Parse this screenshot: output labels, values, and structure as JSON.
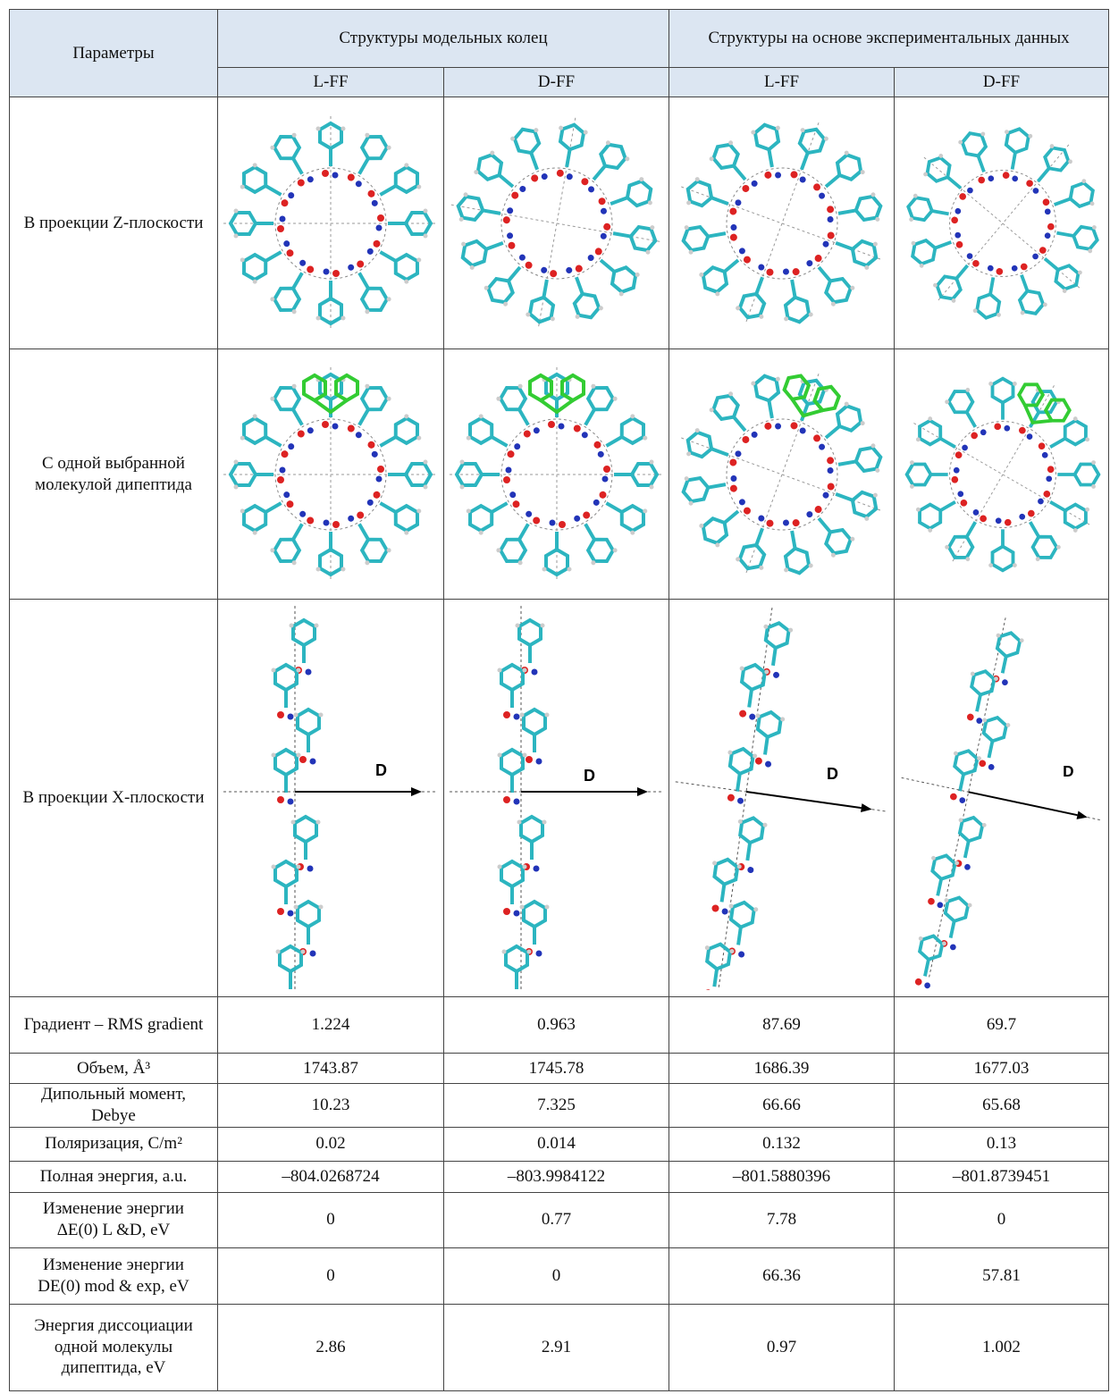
{
  "header": {
    "parameters": "Параметры",
    "groups": [
      "Структуры модельных колец",
      "Структуры на основе экспериментальных данных"
    ],
    "subheaders": [
      "L-FF",
      "D-FF",
      "L-FF",
      "D-FF"
    ]
  },
  "image_rows": [
    {
      "label": "В проекции Z-плоскости"
    },
    {
      "label": "С одной выбранной молекулой дипептида"
    },
    {
      "label": "В проекции X-плоскости",
      "arrow_labels": [
        "D",
        "D",
        "D",
        "D"
      ]
    }
  ],
  "rows": [
    {
      "label": "Градиент – RMS gradient",
      "values": [
        "1.224",
        "0.963",
        "87.69",
        "69.7"
      ]
    },
    {
      "label": "Объем, Å³",
      "values": [
        "1743.87",
        "1745.78",
        "1686.39",
        "1677.03"
      ]
    },
    {
      "label": "Дипольный момент, Debye",
      "values": [
        "10.23",
        "7.325",
        "66.66",
        "65.68"
      ]
    },
    {
      "label": "Поляризация, C/m²",
      "values": [
        "0.02",
        "0.014",
        "0.132",
        "0.13"
      ]
    },
    {
      "label": "Полная энергия, a.u.",
      "values": [
        "–804.0268724",
        "–803.9984122",
        "–801.5880396",
        "–801.8739451"
      ]
    },
    {
      "label": "Изменение энергии ΔE(0) L &D, eV",
      "values": [
        "0",
        "0.77",
        "7.78",
        "0"
      ]
    },
    {
      "label": "Изменение энергии DE(0) mod & exp, eV",
      "values": [
        "0",
        "0",
        "66.36",
        "57.81"
      ]
    },
    {
      "label": "Энергия диссоциации одной молекулы дипептида, eV",
      "values": [
        "2.86",
        "2.91",
        "0.97",
        "1.002"
      ]
    }
  ]
}
